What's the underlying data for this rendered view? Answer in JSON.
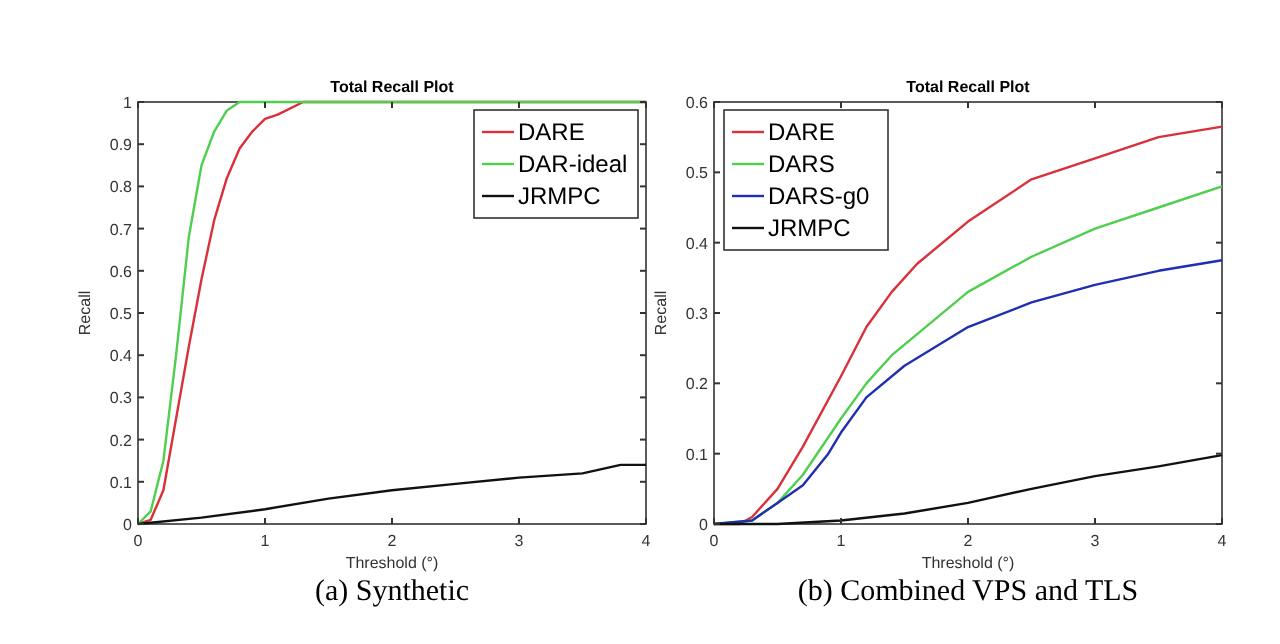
{
  "chart_data": [
    {
      "type": "line",
      "title": "Total Recall Plot",
      "xlabel": "Threshold (°)",
      "ylabel": "Recall",
      "annotations": [
        "(a) Synthetic"
      ],
      "xlim": [
        0,
        4
      ],
      "xticks": [
        0,
        1,
        2,
        3,
        4
      ],
      "ylim": [
        0,
        1
      ],
      "yticks": [
        0,
        0.1,
        0.2,
        0.3,
        0.4,
        0.5,
        0.6,
        0.7,
        0.8,
        0.9,
        1
      ],
      "grid": false,
      "legend": "top right",
      "line_style": "solid",
      "marker": "none",
      "series": [
        {
          "name": "DARE",
          "color": "#d9303a",
          "x": [
            0,
            0.1,
            0.2,
            0.3,
            0.4,
            0.5,
            0.6,
            0.7,
            0.8,
            0.9,
            1,
            1.1,
            1.3,
            4
          ],
          "values": [
            0,
            0.01,
            0.08,
            0.25,
            0.42,
            0.58,
            0.72,
            0.82,
            0.89,
            0.93,
            0.96,
            0.97,
            1,
            1
          ]
        },
        {
          "name": "DAR-ideal",
          "color": "#4fcf4f",
          "x": [
            0,
            0.1,
            0.2,
            0.3,
            0.4,
            0.5,
            0.6,
            0.7,
            0.8,
            4
          ],
          "values": [
            0,
            0.03,
            0.15,
            0.4,
            0.68,
            0.85,
            0.93,
            0.98,
            1,
            1
          ]
        },
        {
          "name": "JRMPC",
          "color": "#111111",
          "x": [
            0,
            0.5,
            1,
            1.5,
            2,
            2.5,
            3,
            3.5,
            3.8,
            4
          ],
          "values": [
            0,
            0.015,
            0.035,
            0.06,
            0.08,
            0.095,
            0.11,
            0.12,
            0.14,
            0.14
          ]
        }
      ]
    },
    {
      "type": "line",
      "title": "Total Recall Plot",
      "xlabel": "Threshold (°)",
      "ylabel": "Recall",
      "annotations": [
        "(b) Combined VPS and TLS"
      ],
      "xlim": [
        0,
        4
      ],
      "xticks": [
        0,
        1,
        2,
        3,
        4
      ],
      "ylim": [
        0,
        0.6
      ],
      "yticks": [
        0,
        0.1,
        0.2,
        0.3,
        0.4,
        0.5,
        0.6
      ],
      "grid": false,
      "legend": "top left",
      "line_style": "solid",
      "marker": "none",
      "series": [
        {
          "name": "DARE",
          "color": "#d9303a",
          "x": [
            0,
            0.2,
            0.3,
            0.5,
            0.7,
            1,
            1.2,
            1.4,
            1.6,
            2,
            2.5,
            3,
            3.5,
            4
          ],
          "values": [
            0,
            0,
            0.01,
            0.05,
            0.11,
            0.21,
            0.28,
            0.33,
            0.37,
            0.43,
            0.49,
            0.52,
            0.55,
            0.565
          ]
        },
        {
          "name": "DARS",
          "color": "#4fcf4f",
          "x": [
            0,
            0.3,
            0.5,
            0.7,
            1,
            1.2,
            1.4,
            1.6,
            2,
            2.5,
            3,
            3.5,
            4
          ],
          "values": [
            0,
            0.005,
            0.03,
            0.07,
            0.15,
            0.2,
            0.24,
            0.27,
            0.33,
            0.38,
            0.42,
            0.45,
            0.48
          ]
        },
        {
          "name": "DARS-g0",
          "color": "#1f2fb0",
          "x": [
            0,
            0.3,
            0.5,
            0.7,
            0.9,
            1,
            1.2,
            1.5,
            2,
            2.5,
            3,
            3.5,
            4
          ],
          "values": [
            0,
            0.005,
            0.03,
            0.055,
            0.1,
            0.13,
            0.18,
            0.225,
            0.28,
            0.315,
            0.34,
            0.36,
            0.375
          ]
        },
        {
          "name": "JRMPC",
          "color": "#111111",
          "x": [
            0,
            0.5,
            1,
            1.5,
            2,
            2.5,
            3,
            3.5,
            4
          ],
          "values": [
            0,
            0,
            0.005,
            0.015,
            0.03,
            0.05,
            0.068,
            0.082,
            0.098
          ]
        }
      ]
    }
  ]
}
